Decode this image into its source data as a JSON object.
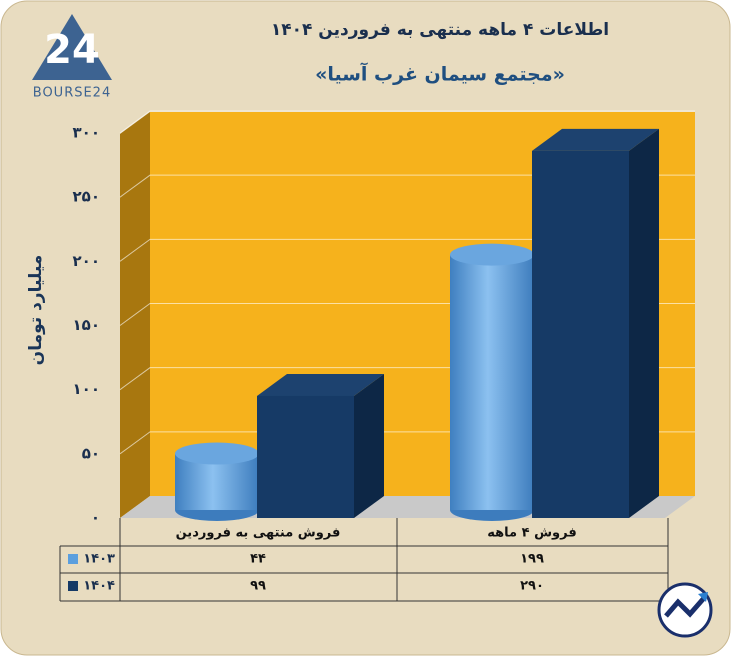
{
  "logo": {
    "number": "24",
    "text": "BOURSE24"
  },
  "chart_data": {
    "type": "bar3d",
    "title": "اطلاعات ۴ ماهه منتهی به فروردین ۱۴۰۴",
    "subtitle": "«مجتمع سیمان غرب آسیا»",
    "y_label": "میلیارد تومان",
    "categories": [
      "فروش منتهی به  فروردین",
      "فروش ۴ ماهه"
    ],
    "series": [
      {
        "name": "۱۴۰۳",
        "color": "#5b9fde",
        "values": [
          44,
          199
        ],
        "value_labels": [
          "۴۴",
          "۱۹۹"
        ]
      },
      {
        "name": "۱۴۰۴",
        "color": "#163a66",
        "values": [
          99,
          290
        ],
        "value_labels": [
          "۹۹",
          "۲۹۰"
        ]
      }
    ],
    "ylim": [
      0,
      300
    ],
    "yticks": [
      {
        "value": 0,
        "label": "۰"
      },
      {
        "value": 50,
        "label": "۵۰"
      },
      {
        "value": 100,
        "label": "۱۰۰"
      },
      {
        "value": 150,
        "label": "۱۵۰"
      },
      {
        "value": 200,
        "label": "۲۰۰"
      },
      {
        "value": 250,
        "label": "۲۵۰"
      },
      {
        "value": 300,
        "label": "۳۰۰"
      }
    ],
    "grid": true
  }
}
